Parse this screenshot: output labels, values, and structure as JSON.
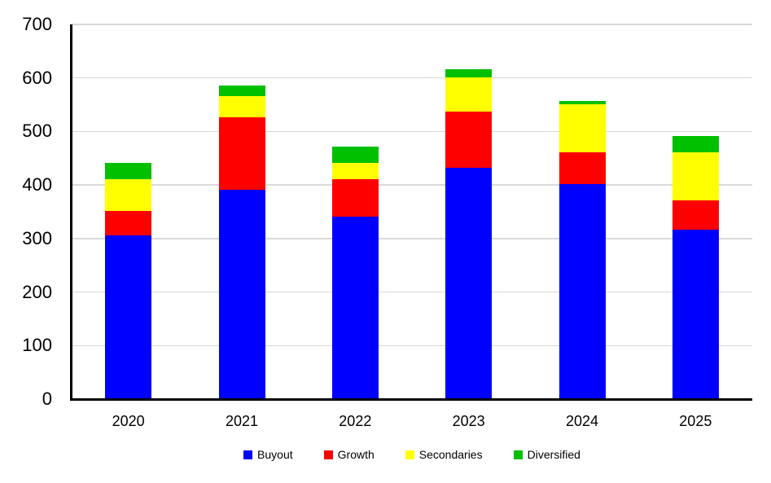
{
  "chart_data": {
    "type": "bar",
    "stacked": true,
    "title": "",
    "xlabel": "",
    "ylabel": "",
    "categories": [
      "2020",
      "2021",
      "2022",
      "2023",
      "2024",
      "2025"
    ],
    "series": [
      {
        "name": "Buyout",
        "color": "#0000FF",
        "values": [
          305,
          390,
          340,
          430,
          400,
          315
        ]
      },
      {
        "name": "Growth",
        "color": "#FF0000",
        "values": [
          45,
          135,
          70,
          105,
          60,
          55
        ]
      },
      {
        "name": "Secondaries",
        "color": "#FFFF00",
        "values": [
          60,
          40,
          30,
          65,
          90,
          90
        ]
      },
      {
        "name": "Diversified",
        "color": "#00C000",
        "values": [
          30,
          20,
          30,
          15,
          5,
          30
        ]
      }
    ],
    "stack_totals": [
      440,
      585,
      470,
      615,
      555,
      490
    ],
    "ylim": [
      0,
      700
    ],
    "yticks": [
      0,
      100,
      200,
      300,
      400,
      500,
      600,
      700
    ],
    "grid": true,
    "gridline_color": "#D9D9D9",
    "axis_color": "#000000",
    "background_color": "#FFFFFF",
    "legend_position": "bottom",
    "legend_items": [
      {
        "label": "Buyout",
        "color": "#0000FF"
      },
      {
        "label": "Growth",
        "color": "#FF0000"
      },
      {
        "label": "Secondaries",
        "color": "#FFFF00"
      },
      {
        "label": "Diversified",
        "color": "#00C000"
      }
    ]
  }
}
